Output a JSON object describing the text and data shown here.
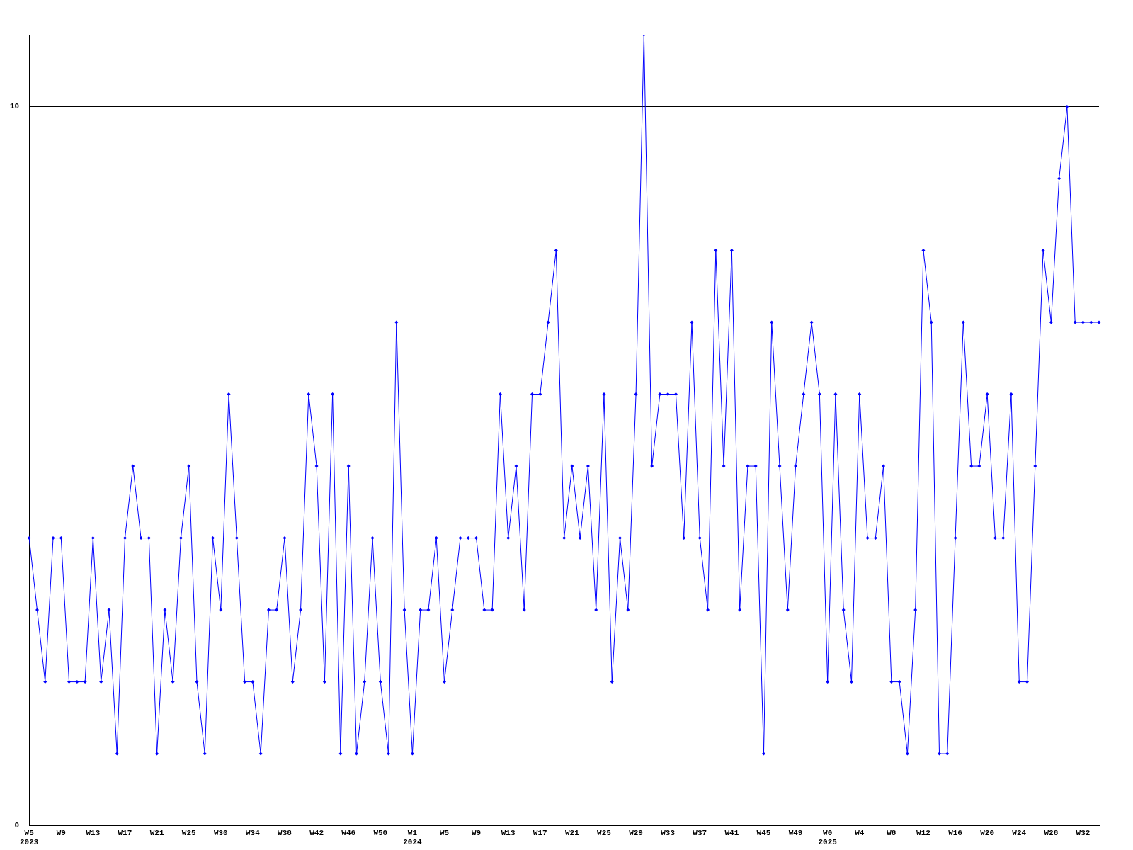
{
  "chart_data": {
    "type": "line",
    "categories": [
      "W5\n2023",
      null,
      null,
      null,
      "W9",
      null,
      null,
      null,
      "W13",
      null,
      null,
      null,
      "W17",
      null,
      null,
      null,
      "W21",
      null,
      null,
      null,
      "W25",
      null,
      null,
      null,
      "W30",
      null,
      null,
      null,
      "W34",
      null,
      null,
      null,
      "W38",
      null,
      null,
      null,
      "W42",
      null,
      null,
      null,
      "W46",
      null,
      null,
      null,
      "W50",
      null,
      null,
      null,
      "W1\n2024",
      null,
      null,
      null,
      "W5",
      null,
      null,
      null,
      "W9",
      null,
      null,
      null,
      "W13",
      null,
      null,
      null,
      "W17",
      null,
      null,
      null,
      "W21",
      null,
      null,
      null,
      "W25",
      null,
      null,
      null,
      "W29",
      null,
      null,
      null,
      "W33",
      null,
      null,
      null,
      "W37",
      null,
      null,
      null,
      "W41",
      null,
      null,
      null,
      "W45",
      null,
      null,
      null,
      "W49",
      null,
      null,
      null,
      "W0\n2025",
      null,
      null,
      null,
      "W4",
      null,
      null,
      null,
      "W8",
      null,
      null,
      null,
      "W12",
      null,
      null,
      null,
      "W16",
      null,
      null,
      null,
      "W20",
      null,
      null,
      null,
      "W24",
      null,
      null,
      null,
      "W28",
      null,
      null,
      null,
      "W32",
      null,
      null
    ],
    "series": [
      {
        "color": "#0000ff",
        "values": [
          4,
          3,
          2,
          4,
          4,
          2,
          2,
          2,
          4,
          2,
          3,
          1,
          4,
          5,
          4,
          4,
          1,
          3,
          2,
          4,
          5,
          2,
          1,
          4,
          3,
          6,
          4,
          2,
          2,
          1,
          3,
          3,
          4,
          2,
          3,
          6,
          5,
          2,
          6,
          1,
          5,
          1,
          2,
          4,
          2,
          1,
          7,
          3,
          1,
          3,
          3,
          4,
          2,
          3,
          4,
          4,
          4,
          3,
          3,
          6,
          4,
          5,
          3,
          6,
          6,
          7,
          8,
          4,
          5,
          4,
          5,
          3,
          6,
          2,
          4,
          3,
          6,
          11,
          5,
          6,
          6,
          6,
          4,
          7,
          4,
          3,
          8,
          5,
          8,
          3,
          5,
          5,
          1,
          7,
          5,
          3,
          5,
          6,
          7,
          6,
          2,
          6,
          3,
          2,
          6,
          4,
          4,
          5,
          2,
          2,
          1,
          3,
          8,
          7,
          1,
          1,
          4,
          7,
          5,
          5,
          6,
          4,
          4,
          6,
          2,
          2,
          5,
          8,
          7,
          9,
          10,
          7,
          7,
          7,
          7
        ]
      }
    ],
    "ylim": [
      0,
      11
    ],
    "yticks": [
      0,
      10
    ],
    "grid": "y",
    "marker": "diamond",
    "line_style": "solid",
    "legend": false
  }
}
